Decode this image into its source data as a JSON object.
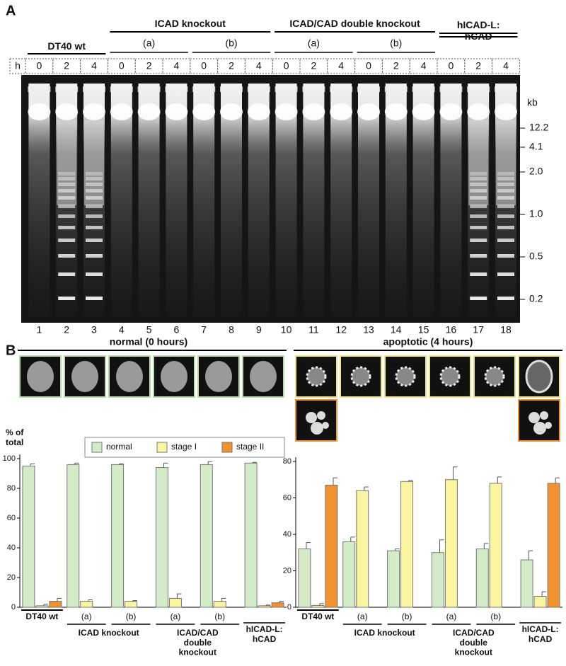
{
  "gel": {
    "panel": "A",
    "groups": [
      "DT40 wt",
      "ICAD knockout",
      "ICAD/CAD double knockout",
      "hICAD-L: hCAD"
    ],
    "subgroups": [
      "(a)",
      "(b)",
      "(a)",
      "(b)"
    ],
    "time_label": "h",
    "times": [
      0,
      2,
      4,
      0,
      2,
      4,
      0,
      2,
      4,
      0,
      2,
      4,
      0,
      2,
      4,
      0,
      2,
      4
    ],
    "lanes": [
      1,
      2,
      3,
      4,
      5,
      6,
      7,
      8,
      9,
      10,
      11,
      12,
      13,
      14,
      15,
      16,
      17,
      18
    ],
    "marker_unit": "kb",
    "markers": [
      "12.2",
      "4.1",
      "2.0",
      "1.0",
      "0.5",
      "0.2"
    ]
  },
  "panel_b": {
    "panel": "B",
    "normal_title": "normal (0 hours)",
    "apoptotic_title": "apoptotic (4 hours)",
    "y_label": "% of total"
  },
  "chart_data": [
    {
      "type": "bar",
      "categories": [
        "DT40 wt",
        "(a)",
        "(b)",
        "(a)",
        "(b)",
        "hICAD-L: hCAD"
      ],
      "groups": [
        "ICAD knockout",
        "ICAD/CAD double knockout"
      ],
      "series": [
        {
          "name": "normal",
          "color": "#d3ebc7",
          "values": [
            95,
            96,
            96,
            94,
            96,
            97
          ],
          "errors": [
            1.5,
            1,
            0.5,
            3,
            2,
            0.5
          ]
        },
        {
          "name": "stage I",
          "color": "#f9f5a0",
          "values": [
            1,
            4,
            4,
            6,
            4,
            1
          ],
          "errors": [
            1,
            1,
            0.5,
            3,
            2,
            0.5
          ]
        },
        {
          "name": "stage II",
          "color": "#f0922e",
          "values": [
            4,
            null,
            null,
            null,
            null,
            3
          ],
          "errors": [
            2,
            null,
            null,
            null,
            null,
            1
          ]
        }
      ],
      "ylim": [
        0,
        100
      ],
      "yticks": [
        0,
        20,
        40,
        60,
        80,
        100
      ]
    },
    {
      "type": "bar",
      "categories": [
        "DT40 wt",
        "(a)",
        "(b)",
        "(a)",
        "(b)",
        "hICAD-L: hCAD"
      ],
      "groups": [
        "ICAD knockout",
        "ICAD/CAD double knockout"
      ],
      "series": [
        {
          "name": "normal",
          "color": "#d3ebc7",
          "values": [
            32,
            36,
            31,
            30,
            32,
            26
          ],
          "errors": [
            3.5,
            2.5,
            1,
            7,
            3,
            5
          ]
        },
        {
          "name": "stage I",
          "color": "#f9f5a0",
          "values": [
            1,
            64,
            69,
            70,
            68,
            6
          ],
          "errors": [
            1,
            2,
            0.5,
            7,
            3.5,
            2.5
          ]
        },
        {
          "name": "stage II",
          "color": "#f0922e",
          "values": [
            67,
            null,
            null,
            null,
            null,
            68
          ],
          "errors": [
            4,
            null,
            null,
            null,
            null,
            3
          ]
        }
      ],
      "ylim": [
        0,
        80
      ],
      "yticks": [
        0,
        20,
        40,
        60,
        80
      ]
    }
  ]
}
